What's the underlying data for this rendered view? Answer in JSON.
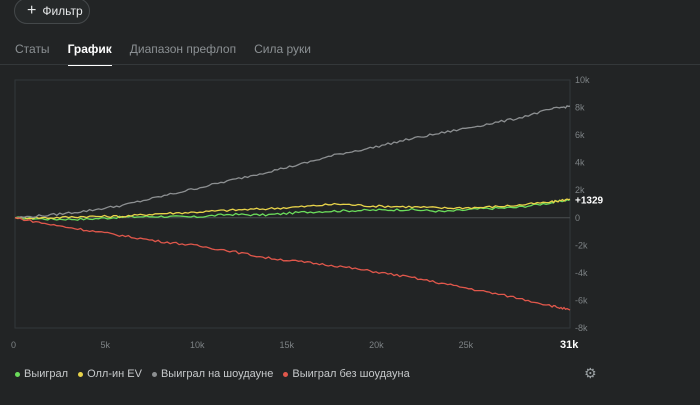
{
  "filter": {
    "label": "Фильтр",
    "icon": "plus-icon"
  },
  "tabs": [
    {
      "label": "Статы",
      "active": false
    },
    {
      "label": "График",
      "active": true
    },
    {
      "label": "Диапазон префлоп",
      "active": false
    },
    {
      "label": "Сила руки",
      "active": false
    }
  ],
  "chart_data": {
    "type": "line",
    "xlim": [
      0,
      31000
    ],
    "ylim": [
      -8000,
      10000
    ],
    "x_ticks": [
      "0",
      "5k",
      "10k",
      "15k",
      "20k",
      "25k",
      "31k"
    ],
    "x_tick_values": [
      0,
      5000,
      10000,
      15000,
      20000,
      25000,
      31000
    ],
    "y_ticks": [
      "10k",
      "8k",
      "6k",
      "4k",
      "2k",
      "0",
      "-2k",
      "-4k",
      "-6k",
      "-8k"
    ],
    "y_tick_values": [
      10000,
      8000,
      6000,
      4000,
      2000,
      0,
      -2000,
      -4000,
      -6000,
      -8000
    ],
    "end_label": "+1329",
    "series": [
      {
        "name": "Выиграл",
        "color": "#6bdc5b",
        "x": [
          0,
          2000,
          4000,
          6000,
          8000,
          10000,
          12000,
          14000,
          16000,
          18000,
          20000,
          22000,
          24000,
          26000,
          28000,
          30000,
          31000
        ],
        "y": [
          0,
          -100,
          -100,
          50,
          100,
          50,
          250,
          200,
          400,
          500,
          550,
          600,
          450,
          650,
          750,
          1100,
          1329
        ]
      },
      {
        "name": "Олл-ин EV",
        "color": "#e8d34a",
        "x": [
          0,
          2000,
          4000,
          6000,
          8000,
          10000,
          12000,
          14000,
          16000,
          18000,
          20000,
          22000,
          24000,
          26000,
          28000,
          30000,
          31000
        ],
        "y": [
          0,
          0,
          100,
          100,
          300,
          400,
          550,
          650,
          800,
          1000,
          850,
          800,
          700,
          750,
          900,
          1150,
          1350
        ]
      },
      {
        "name": "Выиграл на шоудауне",
        "color": "#8c8f91",
        "x": [
          0,
          2000,
          4000,
          6000,
          8000,
          10000,
          12000,
          14000,
          16000,
          18000,
          20000,
          22000,
          24000,
          26000,
          28000,
          30000,
          31000
        ],
        "y": [
          0,
          200,
          500,
          900,
          1500,
          2100,
          2700,
          3300,
          3900,
          4600,
          5100,
          5700,
          6200,
          6700,
          7200,
          7900,
          8100
        ]
      },
      {
        "name": "Выиграл без шоудауна",
        "color": "#e0574b",
        "x": [
          0,
          2000,
          4000,
          6000,
          8000,
          10000,
          12000,
          14000,
          16000,
          18000,
          20000,
          22000,
          24000,
          26000,
          28000,
          30000,
          31000
        ],
        "y": [
          0,
          -500,
          -900,
          -1300,
          -1700,
          -2000,
          -2400,
          -2900,
          -3200,
          -3500,
          -3900,
          -4300,
          -4800,
          -5300,
          -5800,
          -6400,
          -6700
        ]
      }
    ]
  },
  "legend": [
    {
      "label": "Выиграл",
      "color": "#6bdc5b"
    },
    {
      "label": "Олл-ин EV",
      "color": "#e8d34a"
    },
    {
      "label": "Выиграл на шоудауне",
      "color": "#8c8f91"
    },
    {
      "label": "Выиграл без шоудауна",
      "color": "#e0574b"
    }
  ],
  "settings_icon": "gear-icon"
}
